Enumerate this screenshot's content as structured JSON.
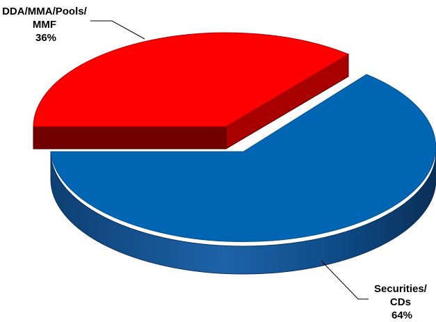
{
  "chart_data": {
    "type": "pie",
    "style": "3d-exploded",
    "title": "",
    "slices": [
      {
        "label_lines": [
          "DDA/MMA/Pools/",
          "MMF",
          "36%"
        ],
        "value": 36,
        "color": "#ff0000",
        "exploded": true
      },
      {
        "label_lines": [
          "Securities/",
          "CDs",
          "64%"
        ],
        "value": 64,
        "color": "#0066b3",
        "exploded": false
      }
    ],
    "legend": "none"
  }
}
